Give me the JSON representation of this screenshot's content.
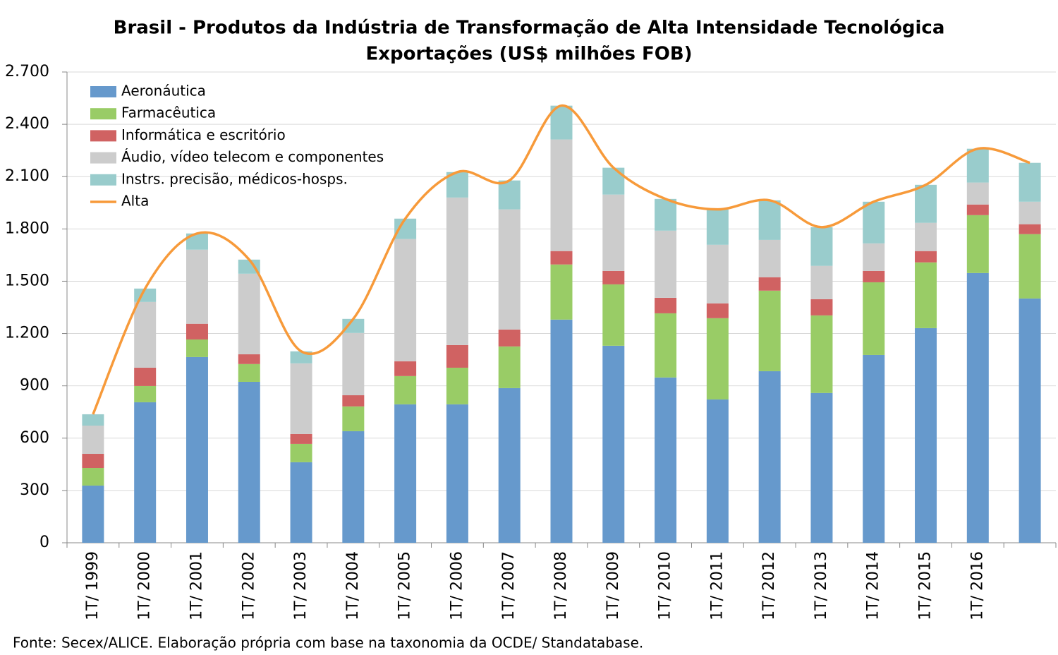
{
  "chart_data": {
    "type": "bar",
    "stacked": true,
    "title": "Brasil - Produtos da Indústria de Transformação de Alta Intensidade Tecnológica",
    "subtitle": "Exportações (US$ milhões FOB)",
    "source": "Fonte: Secex/ALICE. Elaboração própria com base na taxonomia da OCDE/ Standatabase.",
    "categories": [
      "1T/ 1999",
      "1T/ 2000",
      "1T/ 2001",
      "1T/ 2002",
      "1T/ 2003",
      "1T/ 2004",
      "1T/ 2005",
      "1T/ 2006",
      "1T/ 2007",
      "1T/ 2008",
      "1T/ 2009",
      "1T/ 2010",
      "1T/ 2011",
      "1T/ 2012",
      "1T/ 2013",
      "1T/ 2014",
      "1T/ 2015",
      "1T/ 2016",
      null
    ],
    "series": [
      {
        "name": "Aeronáutica",
        "color": "#6699cc",
        "values": [
          328,
          806,
          1065,
          923,
          462,
          640,
          794,
          794,
          887,
          1280,
          1130,
          948,
          822,
          984,
          859,
          1077,
          1231,
          1547,
          1401
        ]
      },
      {
        "name": "Farmacêutica",
        "color": "#99cc66",
        "values": [
          101,
          93,
          101,
          102,
          105,
          142,
          162,
          210,
          239,
          316,
          352,
          368,
          466,
          462,
          445,
          417,
          377,
          332,
          369
        ]
      },
      {
        "name": "Informática e escritório",
        "color": "#d06262",
        "values": [
          81,
          105,
          90,
          56,
          57,
          64,
          85,
          130,
          97,
          77,
          77,
          89,
          85,
          77,
          93,
          65,
          65,
          61,
          57
        ]
      },
      {
        "name": "Áudio, vídeo telecom e componentes",
        "color": "#cccccc",
        "values": [
          162,
          377,
          425,
          462,
          405,
          357,
          701,
          846,
          689,
          640,
          438,
          385,
          336,
          214,
          191,
          158,
          162,
          126,
          129
        ]
      },
      {
        "name": "Instrs. precisão, médicos-hosps.",
        "color": "#99cccc",
        "values": [
          65,
          77,
          93,
          81,
          69,
          81,
          117,
          146,
          166,
          194,
          154,
          182,
          203,
          227,
          222,
          239,
          218,
          194,
          223
        ]
      },
      {
        "name": "Alta",
        "type": "line",
        "color": "#f79a3a",
        "values": [
          737,
          1458,
          1774,
          1624,
          1098,
          1284,
          1859,
          2126,
          2078,
          2507,
          2151,
          1972,
          1912,
          1964,
          1810,
          1956,
          2053,
          2260,
          2179
        ]
      }
    ],
    "ylim": [
      0,
      2700
    ],
    "yticks": [
      0,
      300,
      600,
      900,
      {
        "value": 1200,
        "label": "1.200"
      },
      {
        "value": 1500,
        "label": "1.500"
      },
      {
        "value": 1800,
        "label": "1.800"
      },
      {
        "value": 2100,
        "label": "2.100"
      },
      {
        "value": 2400,
        "label": "2.400"
      },
      {
        "value": 2700,
        "label": "2.700"
      }
    ],
    "grid": true,
    "legend": "upper left"
  }
}
